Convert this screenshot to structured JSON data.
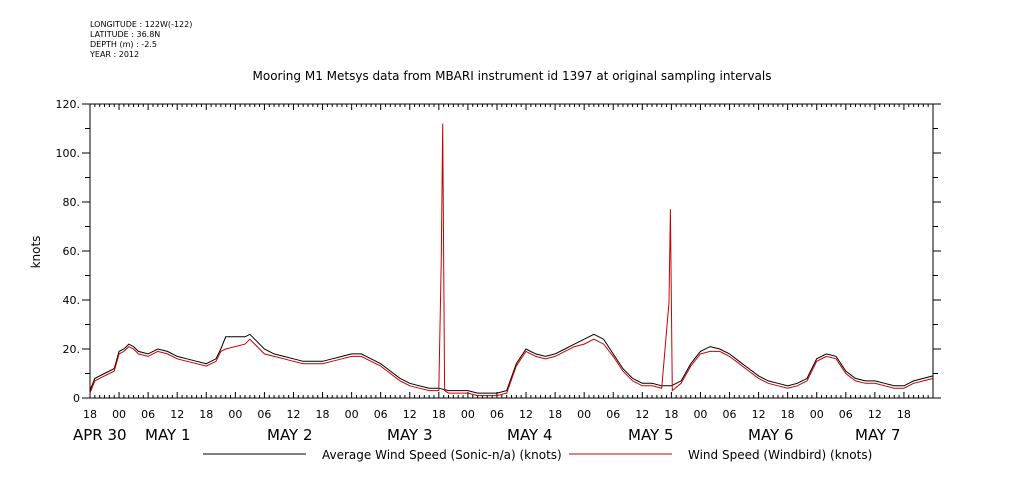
{
  "header": {
    "longitude": "LONGITUDE : 122W(-122)",
    "latitude": "LATITUDE : 36.8N",
    "depth": "DEPTH (m) : -2.5",
    "year": "YEAR : 2012"
  },
  "chart_data": {
    "type": "line",
    "title": "Mooring M1 Metsys data from MBARI instrument id 1397 at original sampling intervals",
    "ylabel": "knots",
    "xlabel": "",
    "ylim": [
      0,
      120
    ],
    "xlim_hours": [
      -6,
      168
    ],
    "yticks": [
      "0",
      "20.",
      "40.",
      "60.",
      "80.",
      "100.",
      "120."
    ],
    "hour_ticks": [
      "18",
      "00",
      "06",
      "12",
      "18",
      "00",
      "06",
      "12",
      "18",
      "00",
      "06",
      "12",
      "18",
      "00",
      "06",
      "12",
      "18",
      "00",
      "06",
      "12",
      "18",
      "00",
      "06",
      "12",
      "18",
      "00",
      "06",
      "12",
      "18"
    ],
    "date_labels": [
      "APR 30",
      "MAY  1",
      "MAY  2",
      "MAY  3",
      "MAY  4",
      "MAY  5",
      "MAY  6",
      "MAY  7"
    ],
    "grid": false,
    "legend_position": "bottom",
    "series": [
      {
        "name": "Average Wind Speed (Sonic-n/a) (knots)",
        "color": "#000000",
        "points": [
          [
            -6,
            3
          ],
          [
            -5,
            8
          ],
          [
            -3,
            10
          ],
          [
            -1,
            12
          ],
          [
            0,
            19
          ],
          [
            1,
            20
          ],
          [
            2,
            22
          ],
          [
            3,
            21
          ],
          [
            4,
            19
          ],
          [
            6,
            18
          ],
          [
            8,
            20
          ],
          [
            10,
            19
          ],
          [
            12,
            17
          ],
          [
            14,
            16
          ],
          [
            16,
            15
          ],
          [
            18,
            14
          ],
          [
            20,
            16
          ],
          [
            21,
            20
          ],
          [
            22,
            25
          ],
          [
            26,
            25
          ],
          [
            27,
            26
          ],
          [
            28,
            24
          ],
          [
            30,
            20
          ],
          [
            32,
            18
          ],
          [
            34,
            17
          ],
          [
            36,
            16
          ],
          [
            38,
            15
          ],
          [
            40,
            15
          ],
          [
            42,
            15
          ],
          [
            44,
            16
          ],
          [
            46,
            17
          ],
          [
            48,
            18
          ],
          [
            50,
            18
          ],
          [
            52,
            16
          ],
          [
            54,
            14
          ],
          [
            56,
            11
          ],
          [
            58,
            8
          ],
          [
            60,
            6
          ],
          [
            62,
            5
          ],
          [
            64,
            4
          ],
          [
            66,
            4
          ],
          [
            68,
            3
          ],
          [
            70,
            3
          ],
          [
            72,
            3
          ],
          [
            74,
            2
          ],
          [
            76,
            2
          ],
          [
            78,
            2
          ],
          [
            80,
            3
          ],
          [
            82,
            14
          ],
          [
            84,
            20
          ],
          [
            86,
            18
          ],
          [
            88,
            17
          ],
          [
            90,
            18
          ],
          [
            92,
            20
          ],
          [
            94,
            22
          ],
          [
            96,
            24
          ],
          [
            98,
            26
          ],
          [
            100,
            24
          ],
          [
            102,
            18
          ],
          [
            104,
            12
          ],
          [
            106,
            8
          ],
          [
            108,
            6
          ],
          [
            110,
            6
          ],
          [
            112,
            5
          ],
          [
            114,
            5
          ],
          [
            116,
            7
          ],
          [
            118,
            14
          ],
          [
            120,
            19
          ],
          [
            122,
            21
          ],
          [
            124,
            20
          ],
          [
            126,
            18
          ],
          [
            128,
            15
          ],
          [
            130,
            12
          ],
          [
            132,
            9
          ],
          [
            134,
            7
          ],
          [
            136,
            6
          ],
          [
            138,
            5
          ],
          [
            140,
            6
          ],
          [
            142,
            8
          ],
          [
            144,
            16
          ],
          [
            146,
            18
          ],
          [
            148,
            17
          ],
          [
            150,
            11
          ],
          [
            152,
            8
          ],
          [
            154,
            7
          ],
          [
            156,
            7
          ],
          [
            158,
            6
          ],
          [
            160,
            5
          ],
          [
            162,
            5
          ],
          [
            164,
            7
          ],
          [
            166,
            8
          ],
          [
            168,
            9
          ]
        ]
      },
      {
        "name": "Wind Speed (Windbird) (knots)",
        "color": "#cc0000",
        "points": [
          [
            -6,
            2
          ],
          [
            -5,
            7
          ],
          [
            -3,
            9
          ],
          [
            -1,
            11
          ],
          [
            0,
            18
          ],
          [
            1,
            19
          ],
          [
            2,
            21
          ],
          [
            3,
            20
          ],
          [
            4,
            18
          ],
          [
            6,
            17
          ],
          [
            8,
            19
          ],
          [
            10,
            18
          ],
          [
            12,
            16
          ],
          [
            14,
            15
          ],
          [
            16,
            14
          ],
          [
            18,
            13
          ],
          [
            20,
            15
          ],
          [
            21,
            19
          ],
          [
            22,
            20
          ],
          [
            26,
            22
          ],
          [
            27,
            24
          ],
          [
            28,
            22
          ],
          [
            30,
            18
          ],
          [
            32,
            17
          ],
          [
            34,
            16
          ],
          [
            36,
            15
          ],
          [
            38,
            14
          ],
          [
            40,
            14
          ],
          [
            42,
            14
          ],
          [
            44,
            15
          ],
          [
            46,
            16
          ],
          [
            48,
            17
          ],
          [
            50,
            17
          ],
          [
            52,
            15
          ],
          [
            54,
            13
          ],
          [
            56,
            10
          ],
          [
            58,
            7
          ],
          [
            60,
            5
          ],
          [
            62,
            4
          ],
          [
            64,
            3
          ],
          [
            66,
            3
          ],
          [
            66.5,
            57
          ],
          [
            66.8,
            112
          ],
          [
            67.2,
            3
          ],
          [
            68,
            2
          ],
          [
            70,
            2
          ],
          [
            72,
            2
          ],
          [
            74,
            1
          ],
          [
            76,
            1
          ],
          [
            78,
            1
          ],
          [
            80,
            2
          ],
          [
            82,
            13
          ],
          [
            84,
            19
          ],
          [
            86,
            17
          ],
          [
            88,
            16
          ],
          [
            90,
            17
          ],
          [
            92,
            19
          ],
          [
            94,
            21
          ],
          [
            96,
            22
          ],
          [
            98,
            24
          ],
          [
            100,
            22
          ],
          [
            102,
            17
          ],
          [
            104,
            11
          ],
          [
            106,
            7
          ],
          [
            108,
            5
          ],
          [
            110,
            5
          ],
          [
            112,
            4
          ],
          [
            113.5,
            39
          ],
          [
            113.8,
            77
          ],
          [
            114.2,
            3
          ],
          [
            116,
            6
          ],
          [
            118,
            13
          ],
          [
            120,
            18
          ],
          [
            122,
            19
          ],
          [
            124,
            19
          ],
          [
            126,
            17
          ],
          [
            128,
            14
          ],
          [
            130,
            11
          ],
          [
            132,
            8
          ],
          [
            134,
            6
          ],
          [
            136,
            5
          ],
          [
            138,
            4
          ],
          [
            140,
            5
          ],
          [
            142,
            7
          ],
          [
            144,
            15
          ],
          [
            146,
            17
          ],
          [
            148,
            16
          ],
          [
            150,
            10
          ],
          [
            152,
            7
          ],
          [
            154,
            6
          ],
          [
            156,
            6
          ],
          [
            158,
            5
          ],
          [
            160,
            4
          ],
          [
            162,
            4
          ],
          [
            164,
            6
          ],
          [
            166,
            7
          ],
          [
            168,
            8
          ]
        ]
      }
    ]
  }
}
